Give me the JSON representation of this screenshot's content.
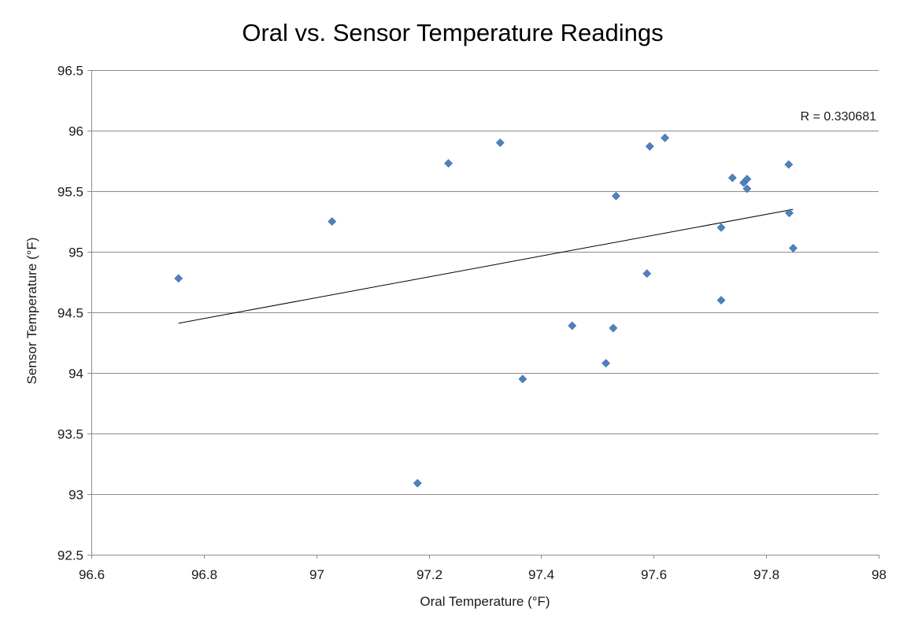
{
  "chart_data": {
    "type": "scatter",
    "title": "Oral vs. Sensor Temperature Readings",
    "xlabel": "Oral Temperature (°F)",
    "ylabel": "Sensor Temperature (°F)",
    "xlim": [
      96.6,
      98
    ],
    "ylim": [
      92.5,
      96.5
    ],
    "xticks": [
      96.6,
      96.8,
      97,
      97.2,
      97.4,
      97.6,
      97.8,
      98
    ],
    "yticks": [
      92.5,
      93,
      93.5,
      94,
      94.5,
      95,
      95.5,
      96,
      96.5
    ],
    "xtick_labels": [
      "96.6",
      "96.8",
      "97",
      "97.2",
      "97.4",
      "97.6",
      "97.8",
      "98"
    ],
    "ytick_labels": [
      "92.5",
      "93",
      "93.5",
      "94",
      "94.5",
      "95",
      "95.5",
      "96",
      "96.5"
    ],
    "grid": "horizontal",
    "legend": "none",
    "marker_color": "#4F81BD",
    "trendline_color": "#000000",
    "annotation": "R = 0.330681",
    "points": [
      {
        "x": 96.755,
        "y": 94.78
      },
      {
        "x": 97.028,
        "y": 95.25
      },
      {
        "x": 97.18,
        "y": 93.09
      },
      {
        "x": 97.235,
        "y": 95.73
      },
      {
        "x": 97.327,
        "y": 95.9
      },
      {
        "x": 97.367,
        "y": 93.95
      },
      {
        "x": 97.455,
        "y": 94.39
      },
      {
        "x": 97.515,
        "y": 94.08
      },
      {
        "x": 97.528,
        "y": 94.37
      },
      {
        "x": 97.533,
        "y": 95.46
      },
      {
        "x": 97.588,
        "y": 94.82
      },
      {
        "x": 97.593,
        "y": 95.87
      },
      {
        "x": 97.62,
        "y": 95.94
      },
      {
        "x": 97.72,
        "y": 95.2
      },
      {
        "x": 97.72,
        "y": 94.6
      },
      {
        "x": 97.74,
        "y": 95.61
      },
      {
        "x": 97.76,
        "y": 95.57
      },
      {
        "x": 97.766,
        "y": 95.6
      },
      {
        "x": 97.766,
        "y": 95.52
      },
      {
        "x": 97.84,
        "y": 95.72
      },
      {
        "x": 97.841,
        "y": 95.32
      },
      {
        "x": 97.848,
        "y": 95.03
      }
    ],
    "trendline": {
      "x": [
        96.755,
        97.848
      ],
      "y": [
        94.41,
        95.35
      ]
    }
  }
}
